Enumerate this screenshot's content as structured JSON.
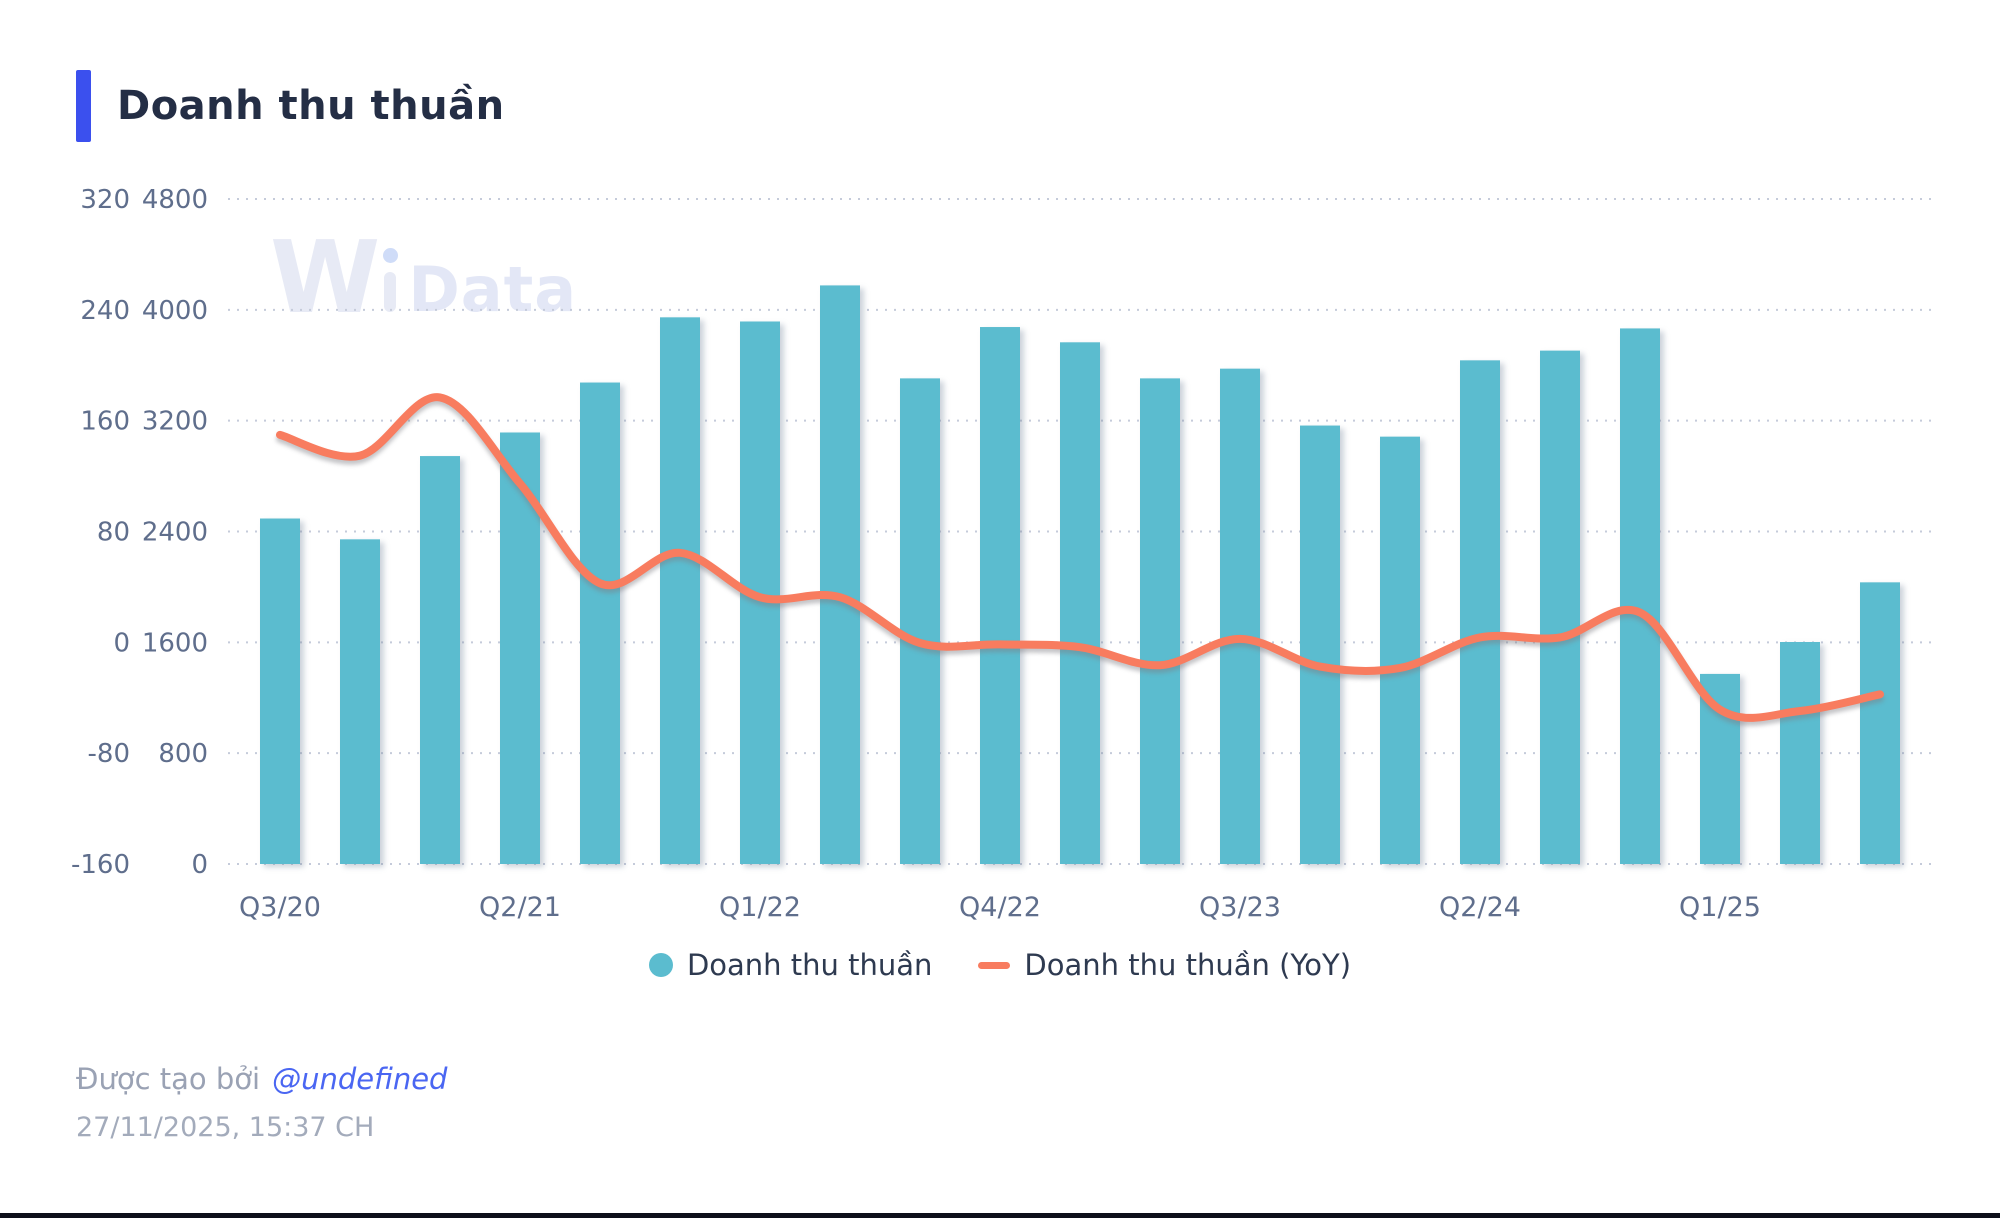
{
  "title": "Doanh thu thuần",
  "watermark": {
    "w": "W",
    "data": "Data"
  },
  "colors": {
    "accent_blue": "#3b50ee",
    "bar_teal": "#5bbccf",
    "line_orange": "#f87c5f",
    "link_blue": "#4a66f2"
  },
  "legend": [
    {
      "label": "Doanh thu thuần",
      "marker": "circle-icon",
      "color": "#5bbccf"
    },
    {
      "label": "Doanh thu thuần (YoY)",
      "marker": "line-icon",
      "color": "#f87c5f"
    }
  ],
  "footer": {
    "created_text": "Được tạo bởi",
    "author": "@undefined",
    "timestamp": "27/11/2025, 15:37 CH"
  },
  "chart_data": {
    "type": "bar",
    "subtype": "bar+line combo, dual y-axis",
    "title": "Doanh thu thuần",
    "grid": "dotted horizontal gridlines",
    "legend_position": "bottom center",
    "categories": [
      "Q3/20",
      "Q4/20",
      "Q1/21",
      "Q2/21",
      "Q3/21",
      "Q4/21",
      "Q1/22",
      "Q2/22",
      "Q3/22",
      "Q4/22",
      "Q1/23",
      "Q2/23",
      "Q3/23",
      "Q4/23",
      "Q1/24",
      "Q2/24",
      "Q3/24",
      "Q4/24",
      "Q1/25",
      "Q2/25",
      "Q3/25"
    ],
    "x_tick_labels_shown": [
      "Q3/20",
      "Q2/21",
      "Q1/22",
      "Q4/22",
      "Q3/23",
      "Q2/24",
      "Q1/25"
    ],
    "x_tick_shown_indices": [
      0,
      3,
      6,
      9,
      12,
      15,
      18
    ],
    "series": [
      {
        "name": "Doanh thu thuần",
        "type": "bar",
        "axis": "value",
        "color": "#5bbccf",
        "values": [
          2490,
          2340,
          2940,
          3110,
          3470,
          3940,
          3910,
          4170,
          3500,
          3870,
          3760,
          3500,
          3570,
          3160,
          3080,
          3630,
          3700,
          3860,
          1370,
          1600,
          2030
        ]
      },
      {
        "name": "Doanh thu thuần (YoY)",
        "type": "line",
        "axis": "percent",
        "color": "#f87c5f",
        "values": [
          150,
          135,
          177,
          115,
          43,
          65,
          33,
          33,
          0,
          -1,
          -3,
          -16,
          3,
          -17,
          -18,
          4,
          4,
          22,
          -48,
          -49,
          -37
        ]
      }
    ],
    "axes": {
      "percent": {
        "side": "outer-left",
        "ticks": [
          320,
          240,
          160,
          80,
          0,
          -80,
          -160
        ],
        "range": [
          -160,
          320
        ]
      },
      "value": {
        "side": "inner-left",
        "ticks": [
          4800,
          4000,
          3200,
          2400,
          1600,
          800,
          0
        ],
        "range": [
          0,
          4800
        ]
      }
    }
  }
}
